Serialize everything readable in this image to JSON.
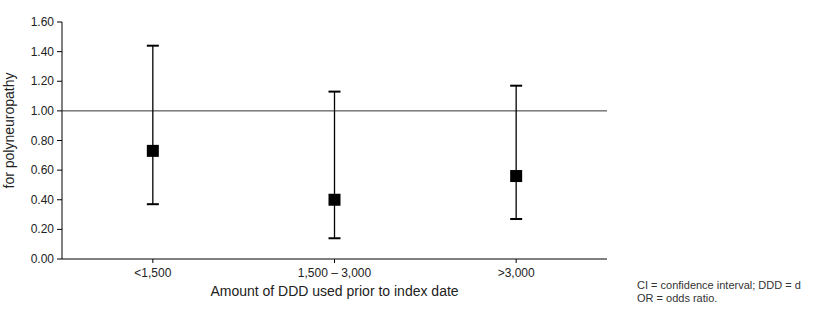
{
  "chart_data": {
    "type": "errorbar",
    "y_label": "for polyneuropathy",
    "x_label": "Amount of DDD used prior to index date",
    "categories": [
      "<1,500",
      "1,500 – 3,000",
      ">3,000"
    ],
    "values": [
      0.73,
      0.4,
      0.56
    ],
    "ci_lower": [
      0.37,
      0.14,
      0.27
    ],
    "ci_upper": [
      1.44,
      1.13,
      1.17
    ],
    "reference_line": 1,
    "color": "#000000",
    "marker": "square",
    "ylim": [
      0,
      1.6
    ],
    "yticks": [
      {
        "value": 0,
        "label": "0.00"
      },
      {
        "value": 0.2,
        "label": "0.20"
      },
      {
        "value": 0.4,
        "label": "0.40"
      },
      {
        "value": 0.6,
        "label": "0.60"
      },
      {
        "value": 0.8,
        "label": "0.80"
      },
      {
        "value": 1,
        "label": "1.00"
      },
      {
        "value": 1.2,
        "label": "1.20"
      },
      {
        "value": 1.4,
        "label": "1.40"
      },
      {
        "value": 1.6,
        "label": "1.60"
      }
    ],
    "grid": false,
    "annotations": [
      "CI = confidence interval; DDD = d",
      "OR = odds ratio."
    ]
  }
}
